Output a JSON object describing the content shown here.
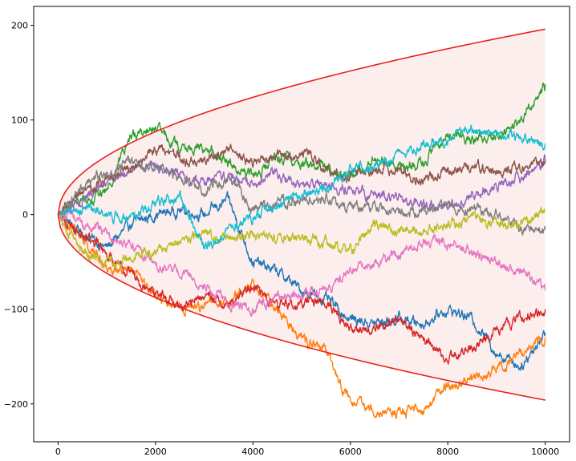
{
  "chart_data": {
    "type": "line",
    "title": "",
    "xlabel": "",
    "ylabel": "",
    "xlim": [
      -500,
      10500
    ],
    "ylim": [
      -240,
      220
    ],
    "grid": false,
    "legend": "none",
    "x_ticks": [
      {
        "value": 0,
        "label": "0"
      },
      {
        "value": 2000,
        "label": "2000"
      },
      {
        "value": 4000,
        "label": "4000"
      },
      {
        "value": 6000,
        "label": "6000"
      },
      {
        "value": 8000,
        "label": "8000"
      },
      {
        "value": 10000,
        "label": "10000"
      }
    ],
    "y_ticks": [
      {
        "value": 200,
        "label": "200"
      },
      {
        "value": 100,
        "label": "100"
      },
      {
        "value": 0,
        "label": "0"
      },
      {
        "value": -100,
        "label": "−100"
      },
      {
        "value": -200,
        "label": "−200"
      }
    ],
    "envelope": {
      "description": "±2·sqrt(x) bounds",
      "x_max": 10000,
      "upper_at_x_max": 196,
      "lower_at_x_max": -196,
      "line_color": "#e8221c",
      "fill_color": "#fdeeee"
    },
    "series_x": [
      0,
      500,
      1000,
      1500,
      2000,
      2500,
      3000,
      3500,
      4000,
      4500,
      5000,
      5500,
      6000,
      6500,
      7000,
      7500,
      8000,
      8500,
      9000,
      9500,
      10000
    ],
    "series": [
      {
        "color": "#1f77b4",
        "values": [
          0,
          -20,
          -35,
          -10,
          0,
          5,
          0,
          15,
          -50,
          -60,
          -80,
          -90,
          -110,
          -115,
          -110,
          -115,
          -100,
          -110,
          -145,
          -160,
          -125
        ]
      },
      {
        "color": "#ff7f0e",
        "values": [
          0,
          -25,
          -55,
          -60,
          -85,
          -100,
          -95,
          -90,
          -75,
          -100,
          -130,
          -145,
          -200,
          -205,
          -210,
          -205,
          -180,
          -175,
          -165,
          -145,
          -130
        ]
      },
      {
        "color": "#2ca02c",
        "values": [
          0,
          15,
          25,
          85,
          90,
          70,
          70,
          55,
          40,
          60,
          55,
          50,
          40,
          60,
          50,
          55,
          85,
          80,
          85,
          100,
          138
        ]
      },
      {
        "color": "#d62728",
        "values": [
          0,
          -20,
          -40,
          -60,
          -80,
          -100,
          -85,
          -95,
          -75,
          -95,
          -95,
          -90,
          -120,
          -120,
          -110,
          -130,
          -155,
          -140,
          -125,
          -110,
          -100
        ]
      },
      {
        "color": "#9467bd",
        "values": [
          0,
          15,
          35,
          50,
          50,
          40,
          35,
          40,
          35,
          45,
          30,
          30,
          25,
          20,
          15,
          10,
          5,
          20,
          30,
          40,
          55
        ]
      },
      {
        "color": "#8c564b",
        "values": [
          0,
          20,
          40,
          50,
          70,
          60,
          55,
          70,
          55,
          60,
          65,
          50,
          40,
          50,
          45,
          35,
          45,
          50,
          45,
          50,
          58
        ]
      },
      {
        "color": "#e377c2",
        "values": [
          0,
          -10,
          -20,
          -30,
          -55,
          -60,
          -75,
          -95,
          -100,
          -90,
          -85,
          -80,
          -60,
          -50,
          -40,
          -30,
          -30,
          -40,
          -50,
          -60,
          -80
        ]
      },
      {
        "color": "#7f7f7f",
        "values": [
          0,
          30,
          45,
          55,
          50,
          40,
          25,
          40,
          5,
          10,
          15,
          20,
          5,
          10,
          0,
          5,
          10,
          5,
          0,
          -15,
          -15
        ]
      },
      {
        "color": "#bcbd22",
        "values": [
          0,
          -40,
          -50,
          -45,
          -35,
          -30,
          -20,
          -25,
          -20,
          -25,
          -25,
          -30,
          -40,
          -10,
          -20,
          -15,
          -10,
          -5,
          -10,
          -10,
          5
        ]
      },
      {
        "color": "#17becf",
        "values": [
          0,
          5,
          0,
          -5,
          10,
          20,
          -35,
          -15,
          -5,
          10,
          20,
          30,
          45,
          55,
          60,
          75,
          80,
          90,
          85,
          80,
          75
        ]
      }
    ]
  }
}
